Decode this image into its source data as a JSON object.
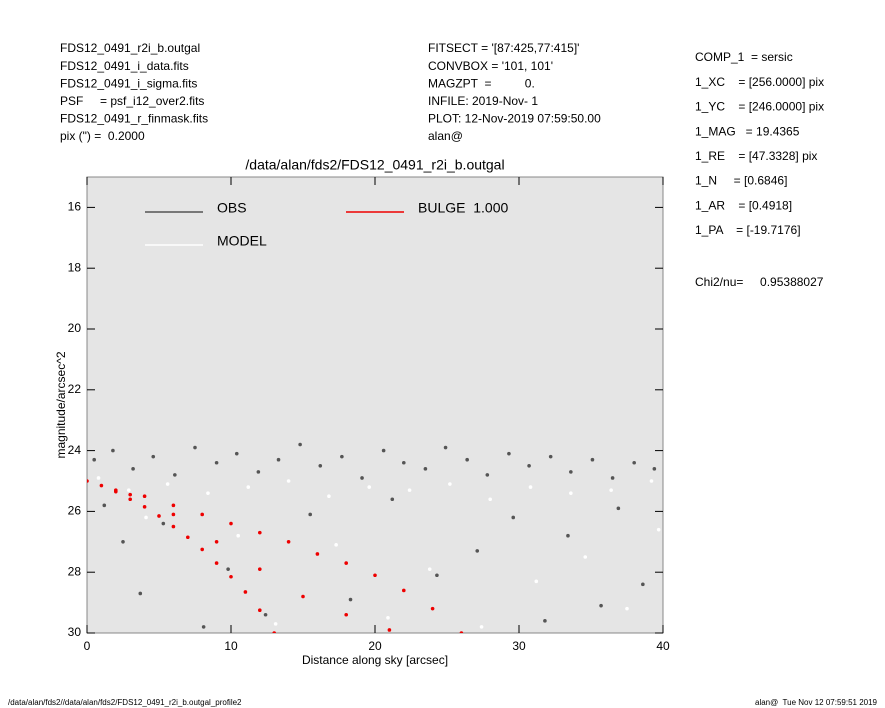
{
  "header": {
    "left": [
      "FDS12_0491_r2i_b.outgal",
      "FDS12_0491_i_data.fits",
      "FDS12_0491_i_sigma.fits",
      "PSF     = psf_i12_over2.fits",
      "FDS12_0491_r_finmask.fits",
      "pix (\") =  0.2000"
    ],
    "middle": [
      "FITSECT = '[87:425,77:415]'",
      "CONVBOX = '101, 101'",
      "MAGZPT  =          0.",
      "INFILE: 2019-Nov- 1",
      "PLOT: 12-Nov-2019 07:59:50.00",
      "alan@"
    ]
  },
  "params": [
    "COMP_1  = sersic",
    "1_XC    = [256.0000] pix",
    "1_YC    = [246.0000] pix",
    "1_MAG   = 19.4365",
    "1_RE    = [47.3328] pix",
    "1_N     = [0.6846]",
    "1_AR    = [0.4918]",
    "1_PA    = [-19.7176]"
  ],
  "chi2": "Chi2/nu=     0.95388027",
  "footer": {
    "left": "/data/alan/fds2//data/alan/fds2/FDS12_0491_r2i_b.outgal_profile2",
    "right": "alan@  Tue Nov 12 07:59:51 2019"
  },
  "chart_data": {
    "type": "scatter",
    "title": "/data/alan/fds2/FDS12_0491_r2i_b.outgal",
    "x_label": "Distance along sky [arcsec]",
    "y_label": "magnitude/arcsec^2",
    "xlim": [
      0,
      40
    ],
    "xticks": [
      0,
      10,
      20,
      30,
      40
    ],
    "ylim": [
      30,
      15
    ],
    "yticks": [
      16,
      18,
      20,
      22,
      24,
      26,
      28,
      30
    ],
    "background": "#e5e5e5",
    "series": [
      {
        "name": "OBS",
        "color": "#555555",
        "x": [
          0.5,
          1.8,
          3.2,
          4.6,
          6.1,
          7.5,
          9.0,
          10.4,
          11.9,
          13.3,
          14.8,
          16.2,
          17.7,
          19.1,
          20.6,
          22.0,
          23.5,
          24.9,
          26.4,
          27.8,
          29.3,
          30.7,
          32.2,
          33.6,
          35.1,
          36.5,
          38.0,
          39.4,
          1.2,
          5.3,
          9.8,
          15.5,
          21.2,
          27.1,
          33.4,
          38.6,
          3.7,
          12.4,
          24.3,
          31.8,
          36.9,
          2.5,
          8.1,
          18.3,
          29.6,
          35.7
        ],
        "values": [
          24.3,
          24.0,
          24.6,
          24.2,
          24.8,
          23.9,
          24.4,
          24.1,
          24.7,
          24.3,
          23.8,
          24.5,
          24.2,
          24.9,
          24.0,
          24.4,
          24.6,
          23.9,
          24.3,
          24.8,
          24.1,
          24.5,
          24.2,
          24.7,
          24.3,
          24.9,
          24.4,
          24.6,
          25.8,
          26.4,
          27.9,
          26.1,
          25.6,
          27.3,
          26.8,
          28.4,
          28.7,
          29.4,
          28.1,
          29.6,
          25.9,
          27.0,
          29.8,
          28.9,
          26.2,
          29.1
        ]
      },
      {
        "name": "MODEL",
        "color": "#ffffff",
        "x": [
          0.8,
          2.9,
          5.6,
          8.4,
          11.2,
          14.0,
          16.8,
          19.6,
          22.4,
          25.2,
          28.0,
          30.8,
          33.6,
          36.4,
          39.2,
          4.1,
          10.5,
          17.3,
          23.8,
          31.2,
          37.5,
          13.1,
          20.9,
          27.4,
          34.6,
          39.7
        ],
        "values": [
          24.9,
          25.3,
          25.1,
          25.4,
          25.2,
          25.0,
          25.5,
          25.2,
          25.3,
          25.1,
          25.6,
          25.2,
          25.4,
          25.3,
          25.0,
          26.2,
          26.8,
          27.1,
          27.9,
          28.3,
          29.2,
          29.7,
          29.5,
          29.8,
          27.5,
          26.6
        ]
      },
      {
        "name": "BULGE  1.000",
        "color": "#ee0000",
        "x": [
          0,
          2,
          4,
          6,
          8,
          10,
          12,
          14,
          16,
          18,
          20,
          22,
          24,
          26,
          1,
          2,
          3,
          4,
          5,
          6,
          7,
          8,
          9,
          10,
          11,
          12,
          13,
          3,
          6,
          9,
          12,
          15,
          18,
          21
        ],
        "values": [
          25.0,
          25.3,
          25.5,
          25.8,
          26.1,
          26.4,
          26.7,
          27.0,
          27.4,
          27.7,
          28.1,
          28.6,
          29.2,
          30.0,
          25.15,
          25.35,
          25.6,
          25.85,
          26.15,
          26.5,
          26.85,
          27.25,
          27.7,
          28.15,
          28.65,
          29.25,
          30.0,
          25.45,
          26.1,
          27.0,
          27.9,
          28.8,
          29.4,
          29.9
        ]
      }
    ]
  }
}
